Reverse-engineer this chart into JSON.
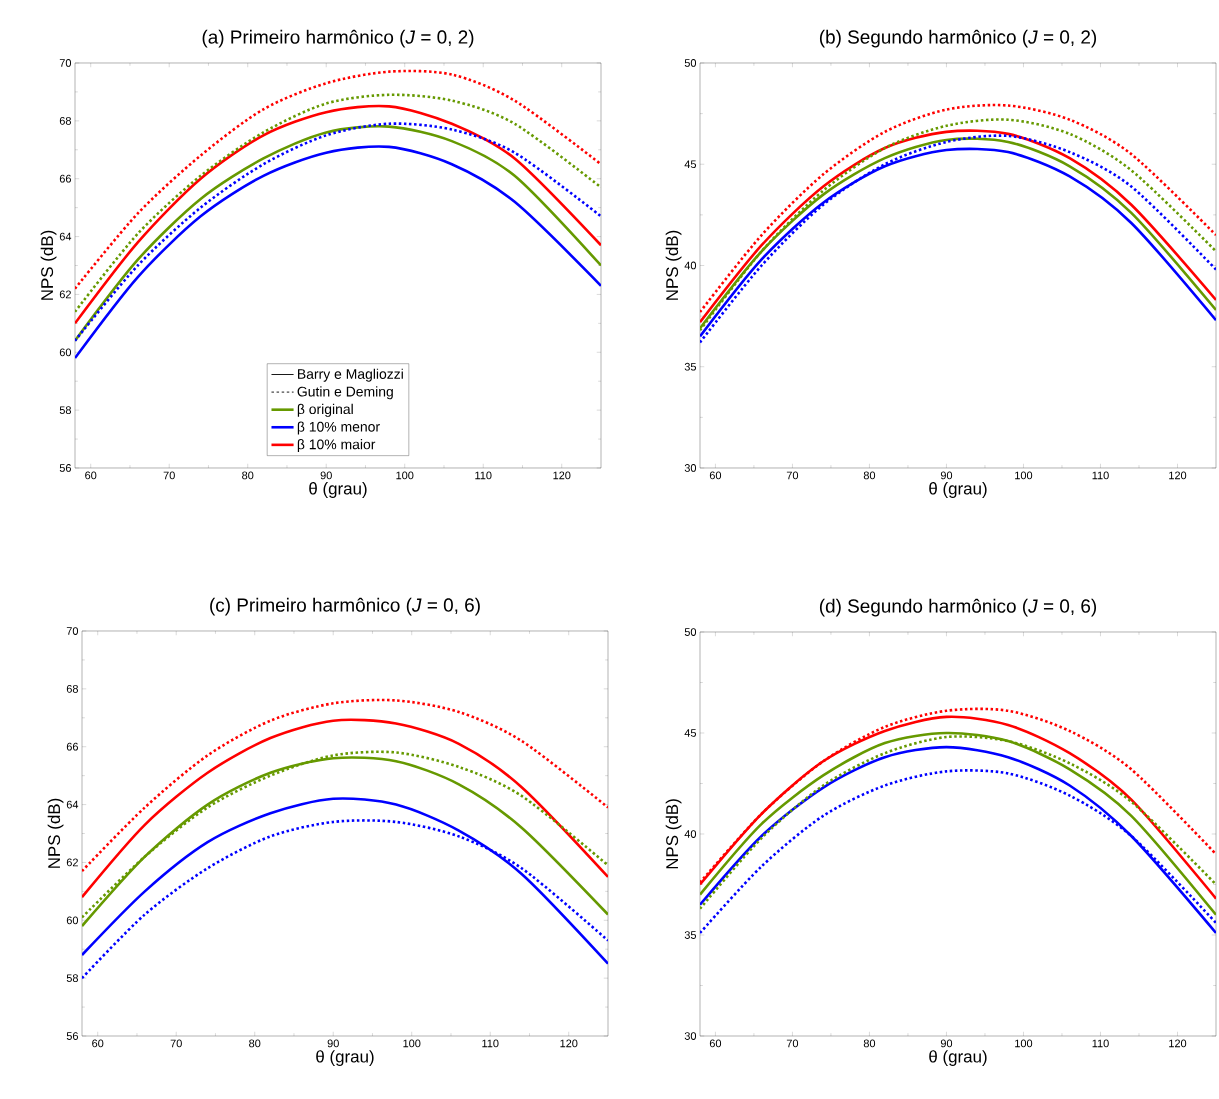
{
  "chart_data": [
    {
      "type": "line",
      "title": "(a) Primeiro harmônico (*J* = 0, 2)",
      "xlabel": "θ (grau)",
      "ylabel": "NPS (dB)",
      "x": [
        58,
        66,
        74,
        82,
        90,
        98,
        106,
        114,
        125
      ],
      "xlim": [
        58,
        125
      ],
      "ylim": [
        56,
        70
      ],
      "xticks": [
        60,
        70,
        80,
        90,
        100,
        110,
        120
      ],
      "yticks": [
        56,
        58,
        60,
        62,
        64,
        66,
        68,
        70
      ],
      "legend": "bottom",
      "series": [
        {
          "name": "Barry e Magliozzi",
          "color": "#000000",
          "line_style": "solid",
          "values": [
            null,
            null,
            null,
            null,
            null,
            null,
            null,
            null,
            null
          ]
        },
        {
          "name": "Gutin e Deming",
          "color": "#000000",
          "line_style": "dotted",
          "values": [
            null,
            null,
            null,
            null,
            null,
            null,
            null,
            null,
            null
          ]
        },
        {
          "name": "β original",
          "color": "#669900",
          "line_style": "solid",
          "values": [
            60.4,
            63.2,
            65.3,
            66.7,
            67.6,
            67.8,
            67.3,
            66.1,
            63.0
          ]
        },
        {
          "name": "β 10% menor",
          "color": "#0000ff",
          "line_style": "solid",
          "values": [
            59.8,
            62.6,
            64.7,
            66.1,
            66.9,
            67.1,
            66.5,
            65.2,
            62.3
          ]
        },
        {
          "name": "β 10% maior",
          "color": "#ff0000",
          "line_style": "solid",
          "values": [
            61.0,
            63.8,
            66.0,
            67.5,
            68.3,
            68.5,
            67.9,
            66.7,
            63.7
          ]
        },
        {
          "color": "#669900",
          "line_style": "dotted",
          "values": [
            61.4,
            64.1,
            66.1,
            67.6,
            68.6,
            68.9,
            68.7,
            67.9,
            65.7
          ]
        },
        {
          "color": "#0000ff",
          "line_style": "dotted",
          "values": [
            60.4,
            63.0,
            65.0,
            66.5,
            67.5,
            67.9,
            67.7,
            66.9,
            64.7
          ]
        },
        {
          "color": "#ff0000",
          "line_style": "dotted",
          "values": [
            62.2,
            64.8,
            66.8,
            68.4,
            69.3,
            69.7,
            69.6,
            68.7,
            66.5
          ]
        }
      ]
    },
    {
      "type": "line",
      "title": "(b) Segundo harmônico (*J* = 0, 2)",
      "xlabel": "θ (grau)",
      "ylabel": "NPS (dB)",
      "x": [
        58,
        66,
        74,
        82,
        90,
        98,
        106,
        114,
        125
      ],
      "xlim": [
        58,
        125
      ],
      "ylim": [
        30,
        50
      ],
      "xticks": [
        60,
        70,
        80,
        90,
        100,
        110,
        120
      ],
      "yticks": [
        30,
        35,
        40,
        45,
        50
      ],
      "series": [
        {
          "color": "#669900",
          "line_style": "solid",
          "values": [
            36.9,
            40.7,
            43.5,
            45.3,
            46.2,
            46.1,
            44.9,
            42.6,
            37.8
          ]
        },
        {
          "color": "#0000ff",
          "line_style": "solid",
          "values": [
            36.5,
            40.3,
            43.1,
            44.9,
            45.7,
            45.6,
            44.4,
            42.1,
            37.3
          ]
        },
        {
          "color": "#ff0000",
          "line_style": "solid",
          "values": [
            37.2,
            41.0,
            43.9,
            45.8,
            46.6,
            46.5,
            45.3,
            43.0,
            38.3
          ]
        },
        {
          "color": "#669900",
          "line_style": "dotted",
          "values": [
            36.8,
            40.7,
            43.7,
            45.8,
            46.9,
            47.2,
            46.5,
            44.7,
            40.7
          ]
        },
        {
          "color": "#0000ff",
          "line_style": "dotted",
          "values": [
            36.2,
            40.0,
            43.0,
            45.0,
            46.1,
            46.4,
            45.6,
            43.9,
            39.8
          ]
        },
        {
          "color": "#ff0000",
          "line_style": "dotted",
          "values": [
            37.7,
            41.5,
            44.5,
            46.6,
            47.7,
            47.9,
            47.2,
            45.5,
            41.5
          ]
        }
      ]
    },
    {
      "type": "line",
      "title": "(c) Primeiro harmônico (*J* = 0, 6)",
      "xlabel": "θ (grau)",
      "ylabel": "NPS (dB)",
      "x": [
        58,
        66,
        74,
        82,
        90,
        98,
        106,
        114,
        125
      ],
      "xlim": [
        58,
        125
      ],
      "ylim": [
        56,
        70
      ],
      "xticks": [
        60,
        70,
        80,
        90,
        100,
        110,
        120
      ],
      "yticks": [
        56,
        58,
        60,
        62,
        64,
        66,
        68,
        70
      ],
      "series": [
        {
          "color": "#669900",
          "line_style": "solid",
          "values": [
            59.8,
            62.2,
            64.0,
            65.1,
            65.6,
            65.5,
            64.7,
            63.2,
            60.2
          ]
        },
        {
          "color": "#0000ff",
          "line_style": "solid",
          "values": [
            58.8,
            61.0,
            62.7,
            63.7,
            64.2,
            64.0,
            63.1,
            61.6,
            58.5
          ]
        },
        {
          "color": "#ff0000",
          "line_style": "solid",
          "values": [
            60.8,
            63.3,
            65.1,
            66.3,
            66.9,
            66.8,
            66.1,
            64.6,
            61.5
          ]
        },
        {
          "color": "#669900",
          "line_style": "dotted",
          "values": [
            60.1,
            62.2,
            63.9,
            65.0,
            65.7,
            65.8,
            65.3,
            64.3,
            61.9
          ]
        },
        {
          "color": "#0000ff",
          "line_style": "dotted",
          "values": [
            58.0,
            60.2,
            61.8,
            62.9,
            63.4,
            63.4,
            62.9,
            61.8,
            59.3
          ]
        },
        {
          "color": "#ff0000",
          "line_style": "dotted",
          "values": [
            61.7,
            63.9,
            65.7,
            66.9,
            67.5,
            67.6,
            67.2,
            66.2,
            63.9
          ]
        }
      ]
    },
    {
      "type": "line",
      "title": "(d) Segundo harmônico (*J* = 0, 6)",
      "xlabel": "θ (grau)",
      "ylabel": "NPS (dB)",
      "x": [
        58,
        66,
        74,
        82,
        90,
        98,
        106,
        114,
        125
      ],
      "xlim": [
        58,
        125
      ],
      "ylim": [
        30,
        50
      ],
      "xticks": [
        60,
        70,
        80,
        90,
        100,
        110,
        120
      ],
      "yticks": [
        30,
        35,
        40,
        45,
        50
      ],
      "series": [
        {
          "color": "#669900",
          "line_style": "solid",
          "values": [
            37.0,
            40.5,
            42.9,
            44.5,
            45.0,
            44.6,
            43.2,
            40.9,
            36.0
          ]
        },
        {
          "color": "#0000ff",
          "line_style": "solid",
          "values": [
            36.5,
            39.9,
            42.3,
            43.8,
            44.3,
            43.8,
            42.4,
            39.9,
            35.1
          ]
        },
        {
          "color": "#ff0000",
          "line_style": "solid",
          "values": [
            37.5,
            41.0,
            43.6,
            45.1,
            45.8,
            45.4,
            44.0,
            41.7,
            36.8
          ]
        },
        {
          "color": "#669900",
          "line_style": "dotted",
          "values": [
            36.3,
            39.8,
            42.4,
            44.0,
            44.8,
            44.6,
            43.5,
            41.6,
            37.5
          ]
        },
        {
          "color": "#0000ff",
          "line_style": "dotted",
          "values": [
            35.1,
            38.4,
            40.9,
            42.4,
            43.1,
            43.0,
            41.9,
            39.9,
            35.6
          ]
        },
        {
          "color": "#ff0000",
          "line_style": "dotted",
          "values": [
            37.6,
            41.0,
            43.6,
            45.3,
            46.1,
            46.1,
            45.1,
            43.2,
            39.0
          ]
        }
      ]
    }
  ]
}
